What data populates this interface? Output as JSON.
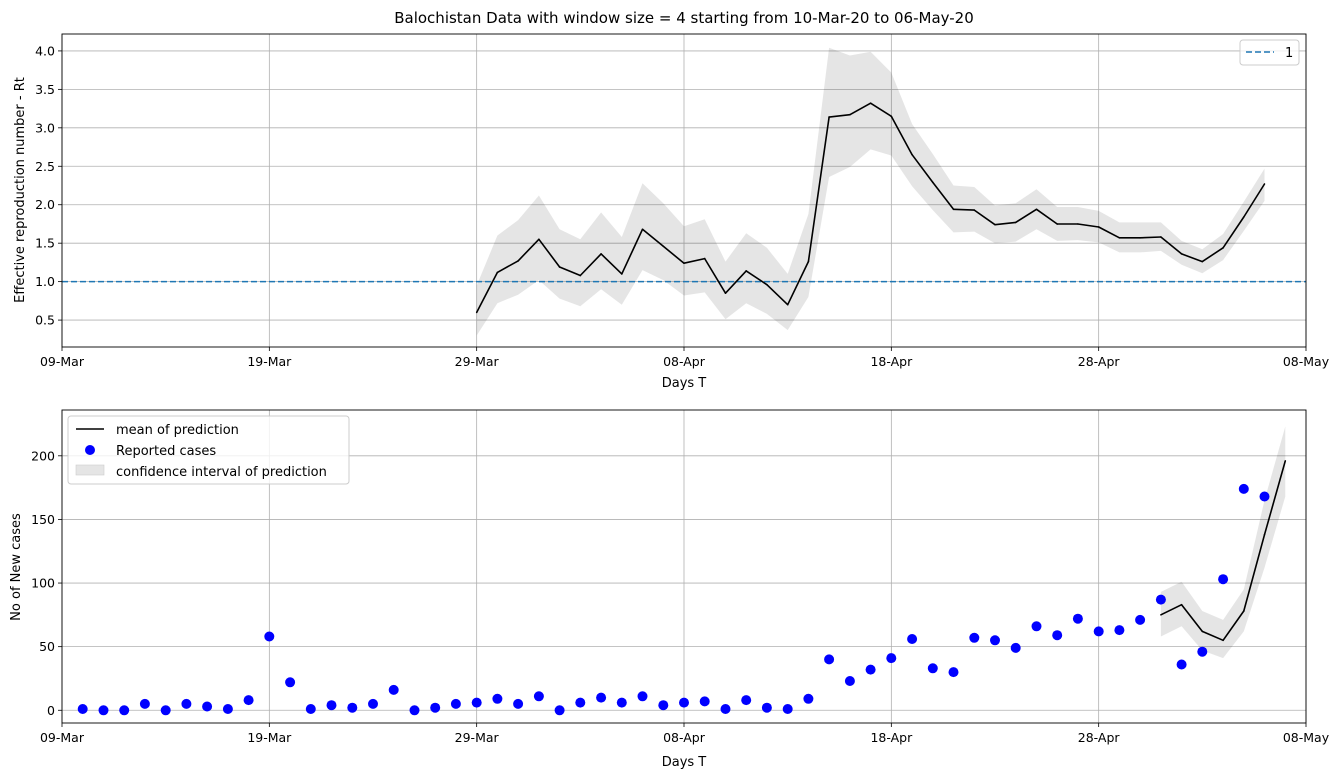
{
  "chart_data": [
    {
      "type": "line",
      "title": "Balochistan Data with window size = 4 starting from 10-Mar-20 to 06-May-20",
      "xlabel": "Days T",
      "ylabel": "Effective reproduction number - Rt",
      "x_ticks": [
        "09-Mar",
        "19-Mar",
        "29-Mar",
        "08-Apr",
        "18-Apr",
        "28-Apr",
        "08-May"
      ],
      "y_ticks": [
        "0.5",
        "1.0",
        "1.5",
        "2.0",
        "2.5",
        "3.0",
        "3.5",
        "4.0"
      ],
      "xlim": [
        "09-Mar",
        "08-May"
      ],
      "ylim": [
        0.15,
        4.22
      ],
      "grid": true,
      "legend": {
        "placement": "top-right",
        "entries": [
          "1"
        ]
      },
      "reference_line": {
        "name": "1",
        "y": 1.0,
        "style": "dashed",
        "color": "#1f77b4"
      },
      "series": [
        {
          "kind": "line",
          "color": "#000000",
          "x": [
            "29-Mar",
            "30-Mar",
            "31-Mar",
            "01-Apr",
            "02-Apr",
            "03-Apr",
            "04-Apr",
            "05-Apr",
            "06-Apr",
            "07-Apr",
            "08-Apr",
            "09-Apr",
            "10-Apr",
            "11-Apr",
            "12-Apr",
            "13-Apr",
            "14-Apr",
            "15-Apr",
            "16-Apr",
            "17-Apr",
            "18-Apr",
            "19-Apr",
            "20-Apr",
            "21-Apr",
            "22-Apr",
            "23-Apr",
            "24-Apr",
            "25-Apr",
            "26-Apr",
            "27-Apr",
            "28-Apr",
            "29-Apr",
            "30-Apr",
            "01-May",
            "02-May",
            "03-May",
            "04-May",
            "05-May",
            "06-May"
          ],
          "values": [
            0.6,
            1.12,
            1.27,
            1.55,
            1.19,
            1.08,
            1.36,
            1.1,
            1.68,
            1.46,
            1.24,
            1.3,
            0.85,
            1.14,
            0.96,
            0.7,
            1.26,
            3.14,
            3.17,
            3.32,
            3.15,
            2.65,
            2.29,
            1.94,
            1.93,
            1.74,
            1.77,
            1.94,
            1.75,
            1.75,
            1.71,
            1.57,
            1.57,
            1.58,
            1.36,
            1.26,
            1.44,
            1.84,
            2.27
          ]
        },
        {
          "kind": "band",
          "color": "#e5e5e5",
          "lower": [
            0.3,
            0.72,
            0.83,
            1.02,
            0.78,
            0.68,
            0.9,
            0.7,
            1.15,
            1.02,
            0.82,
            0.86,
            0.51,
            0.72,
            0.58,
            0.37,
            0.8,
            2.36,
            2.49,
            2.72,
            2.64,
            2.24,
            1.93,
            1.64,
            1.65,
            1.5,
            1.52,
            1.68,
            1.53,
            1.54,
            1.51,
            1.38,
            1.38,
            1.4,
            1.22,
            1.11,
            1.28,
            1.66,
            2.05
          ],
          "upper": [
            0.95,
            1.6,
            1.8,
            2.12,
            1.68,
            1.55,
            1.9,
            1.58,
            2.28,
            2.02,
            1.72,
            1.81,
            1.26,
            1.63,
            1.44,
            1.1,
            1.88,
            4.04,
            3.94,
            3.99,
            3.72,
            3.05,
            2.66,
            2.25,
            2.23,
            1.99,
            2.02,
            2.2,
            1.97,
            1.97,
            1.92,
            1.77,
            1.77,
            1.77,
            1.53,
            1.42,
            1.62,
            2.04,
            2.47
          ]
        }
      ]
    },
    {
      "type": "scatter",
      "title": "",
      "xlabel": "Days T",
      "ylabel": "No of New cases",
      "x_ticks": [
        "09-Mar",
        "19-Mar",
        "29-Mar",
        "08-Apr",
        "18-Apr",
        "28-Apr",
        "08-May"
      ],
      "y_ticks": [
        "0",
        "50",
        "100",
        "150",
        "200"
      ],
      "xlim": [
        "09-Mar",
        "08-May"
      ],
      "ylim": [
        -10,
        236
      ],
      "grid": true,
      "legend": {
        "placement": "top-left",
        "entries": [
          "mean of prediction",
          "Reported cases",
          "confidence interval of prediction"
        ]
      },
      "series": [
        {
          "name": "Reported cases",
          "kind": "scatter",
          "color": "#0000ff",
          "x": [
            "10-Mar",
            "11-Mar",
            "12-Mar",
            "13-Mar",
            "14-Mar",
            "15-Mar",
            "16-Mar",
            "17-Mar",
            "18-Mar",
            "19-Mar",
            "20-Mar",
            "21-Mar",
            "22-Mar",
            "23-Mar",
            "24-Mar",
            "25-Mar",
            "26-Mar",
            "27-Mar",
            "28-Mar",
            "29-Mar",
            "30-Mar",
            "31-Mar",
            "01-Apr",
            "02-Apr",
            "03-Apr",
            "04-Apr",
            "05-Apr",
            "06-Apr",
            "07-Apr",
            "08-Apr",
            "09-Apr",
            "10-Apr",
            "11-Apr",
            "12-Apr",
            "13-Apr",
            "14-Apr",
            "15-Apr",
            "16-Apr",
            "17-Apr",
            "18-Apr",
            "19-Apr",
            "20-Apr",
            "21-Apr",
            "22-Apr",
            "23-Apr",
            "24-Apr",
            "25-Apr",
            "26-Apr",
            "27-Apr",
            "28-Apr",
            "29-Apr",
            "30-Apr",
            "01-May",
            "02-May",
            "03-May",
            "04-May",
            "05-May",
            "06-May"
          ],
          "values": [
            1,
            0,
            0,
            5,
            0,
            5,
            3,
            1,
            8,
            58,
            22,
            1,
            4,
            2,
            5,
            16,
            0,
            2,
            5,
            6,
            9,
            5,
            11,
            0,
            6,
            10,
            6,
            11,
            4,
            6,
            7,
            1,
            8,
            2,
            1,
            9,
            40,
            23,
            32,
            41,
            56,
            33,
            30,
            57,
            55,
            49,
            66,
            59,
            72,
            62,
            63,
            71,
            87,
            36,
            46,
            103,
            174,
            168
          ]
        },
        {
          "name": "mean of prediction",
          "kind": "line",
          "color": "#000000",
          "x": [
            "01-May",
            "02-May",
            "03-May",
            "04-May",
            "05-May",
            "06-May",
            "07-May"
          ],
          "values": [
            75,
            83,
            62,
            55,
            78,
            138,
            196
          ]
        },
        {
          "name": "confidence interval of prediction",
          "kind": "band",
          "color": "#e5e5e5",
          "x": [
            "01-May",
            "02-May",
            "03-May",
            "04-May",
            "05-May",
            "06-May",
            "07-May"
          ],
          "lower": [
            58,
            66,
            47,
            41,
            62,
            112,
            168
          ],
          "upper": [
            93,
            101,
            78,
            71,
            95,
            165,
            223
          ]
        }
      ]
    }
  ]
}
